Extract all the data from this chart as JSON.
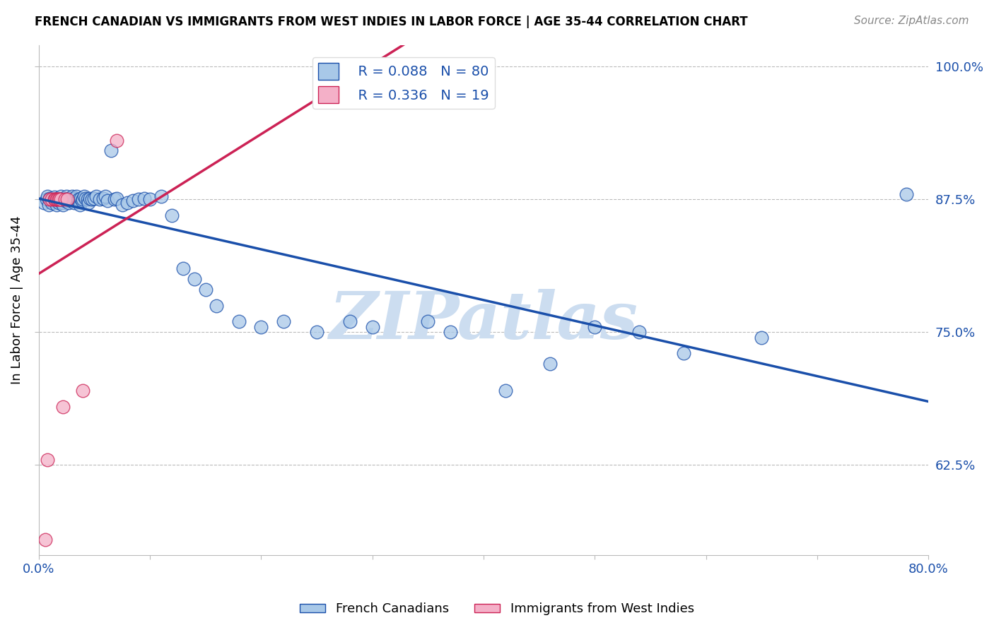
{
  "title": "FRENCH CANADIAN VS IMMIGRANTS FROM WEST INDIES IN LABOR FORCE | AGE 35-44 CORRELATION CHART",
  "source": "Source: ZipAtlas.com",
  "ylabel": "In Labor Force | Age 35-44",
  "xlim": [
    0.0,
    0.8
  ],
  "ylim": [
    0.54,
    1.02
  ],
  "yticks": [
    0.625,
    0.75,
    0.875,
    1.0
  ],
  "yticklabels": [
    "62.5%",
    "75.0%",
    "87.5%",
    "100.0%"
  ],
  "blue_color": "#a8c8e8",
  "pink_color": "#f4b0c8",
  "blue_line_color": "#1a4faa",
  "pink_line_color": "#cc2255",
  "legend_R_blue": "R = 0.088",
  "legend_N_blue": "N = 80",
  "legend_R_pink": "R = 0.336",
  "legend_N_pink": "N = 19",
  "blue_scatter_x": [
    0.005,
    0.007,
    0.008,
    0.009,
    0.01,
    0.011,
    0.012,
    0.013,
    0.014,
    0.015,
    0.016,
    0.016,
    0.017,
    0.018,
    0.019,
    0.02,
    0.02,
    0.021,
    0.022,
    0.022,
    0.023,
    0.024,
    0.025,
    0.026,
    0.027,
    0.028,
    0.029,
    0.03,
    0.031,
    0.032,
    0.033,
    0.034,
    0.035,
    0.036,
    0.037,
    0.038,
    0.039,
    0.04,
    0.041,
    0.042,
    0.044,
    0.045,
    0.046,
    0.048,
    0.05,
    0.052,
    0.055,
    0.058,
    0.06,
    0.062,
    0.065,
    0.068,
    0.07,
    0.075,
    0.08,
    0.085,
    0.09,
    0.095,
    0.1,
    0.11,
    0.12,
    0.13,
    0.14,
    0.15,
    0.16,
    0.18,
    0.2,
    0.22,
    0.25,
    0.28,
    0.3,
    0.35,
    0.37,
    0.42,
    0.46,
    0.5,
    0.54,
    0.58,
    0.65,
    0.78
  ],
  "blue_scatter_y": [
    0.872,
    0.875,
    0.878,
    0.87,
    0.876,
    0.874,
    0.872,
    0.875,
    0.877,
    0.874,
    0.875,
    0.87,
    0.876,
    0.872,
    0.874,
    0.878,
    0.875,
    0.872,
    0.875,
    0.87,
    0.876,
    0.874,
    0.878,
    0.875,
    0.872,
    0.876,
    0.874,
    0.878,
    0.875,
    0.872,
    0.876,
    0.878,
    0.874,
    0.875,
    0.87,
    0.876,
    0.874,
    0.875,
    0.878,
    0.876,
    0.875,
    0.872,
    0.876,
    0.875,
    0.876,
    0.878,
    0.875,
    0.876,
    0.878,
    0.874,
    0.921,
    0.875,
    0.876,
    0.87,
    0.872,
    0.874,
    0.875,
    0.876,
    0.875,
    0.878,
    0.86,
    0.81,
    0.8,
    0.79,
    0.775,
    0.76,
    0.755,
    0.76,
    0.75,
    0.76,
    0.755,
    0.76,
    0.75,
    0.695,
    0.72,
    0.755,
    0.75,
    0.73,
    0.745,
    0.88
  ],
  "pink_scatter_x": [
    0.006,
    0.008,
    0.01,
    0.012,
    0.014,
    0.015,
    0.016,
    0.017,
    0.018,
    0.019,
    0.02,
    0.022,
    0.024,
    0.026,
    0.04,
    0.07,
    0.29,
    0.305,
    0.32
  ],
  "pink_scatter_y": [
    0.555,
    0.63,
    0.875,
    0.875,
    0.875,
    0.875,
    0.875,
    0.875,
    0.875,
    0.875,
    0.875,
    0.68,
    0.875,
    0.875,
    0.695,
    0.93,
    1.0,
    1.0,
    1.0
  ],
  "watermark": "ZIPatlas",
  "watermark_color": "#ccddf0",
  "background_color": "#ffffff",
  "grid_color": "#bbbbbb"
}
